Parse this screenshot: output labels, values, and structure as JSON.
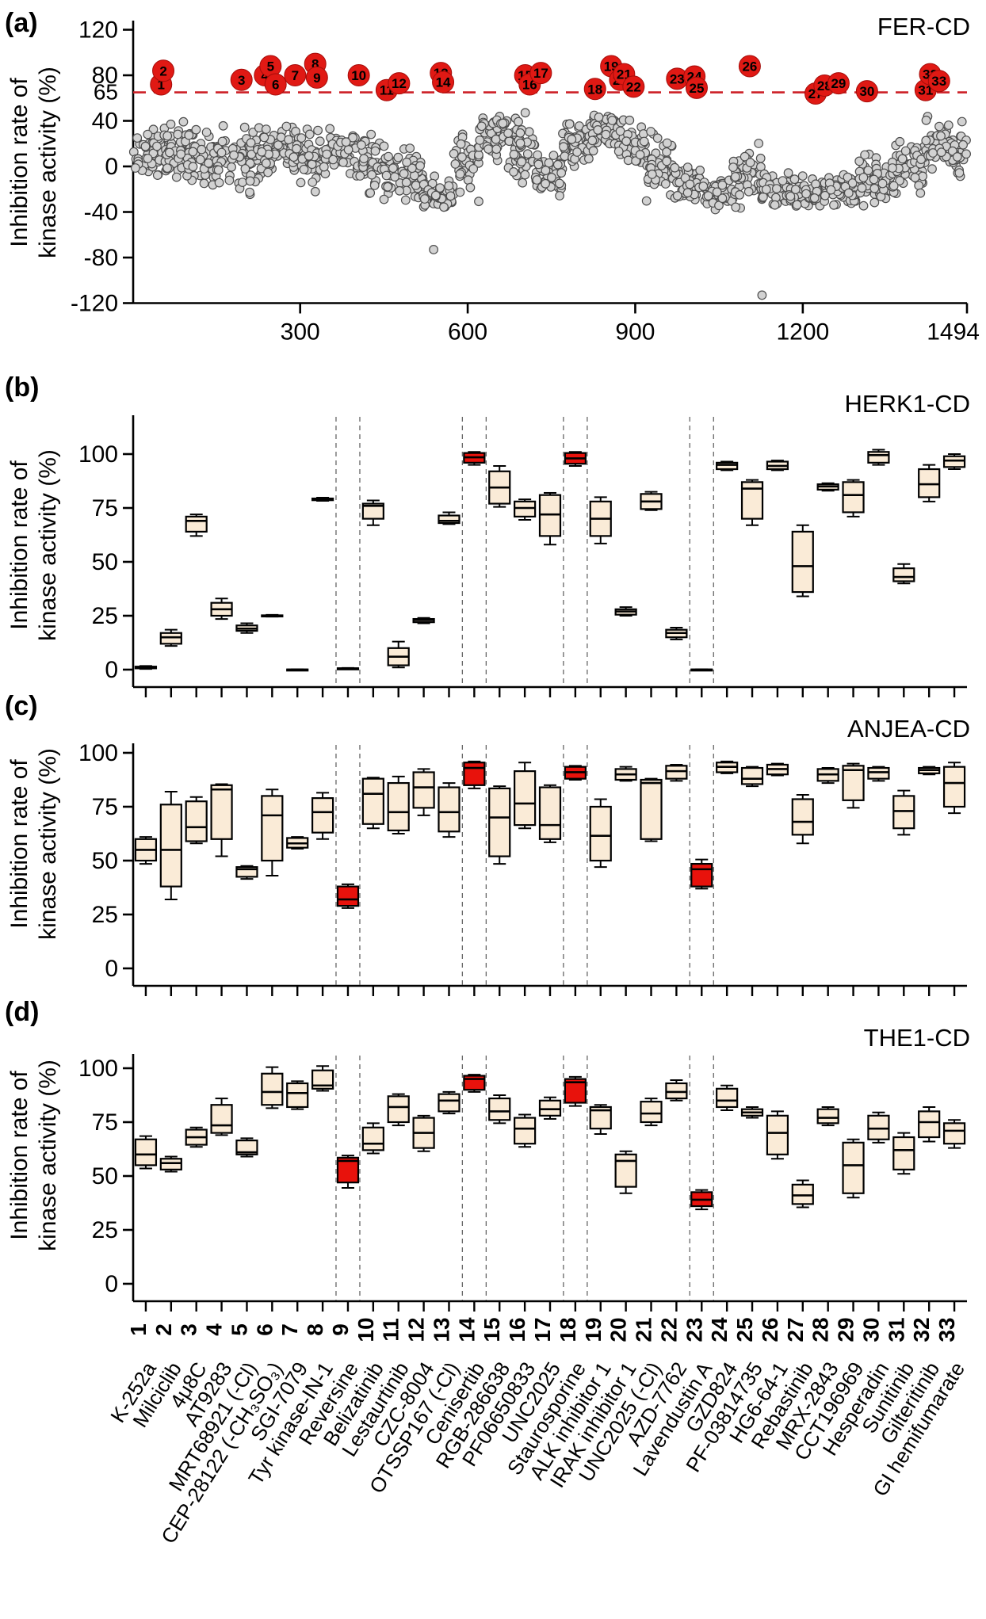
{
  "ui": {
    "panel_a": {
      "letter": "(a)",
      "title": "FER-CD"
    },
    "panel_b": {
      "letter": "(b)",
      "title": "HERK1-CD"
    },
    "panel_c": {
      "letter": "(c)",
      "title": "ANJEA-CD"
    },
    "panel_d": {
      "letter": "(d)",
      "title": "THE1-CD"
    },
    "ylabel_line1": "Inhibition rate of",
    "ylabel_line2": "kinase activity (%)"
  },
  "colors": {
    "box_fill": "#faebd7",
    "box_red": "#e8120c",
    "stroke": "#000000",
    "point_fill": "#d2d2d2",
    "point_stroke": "#4d4d4d",
    "threshold_red": "#cd2027",
    "circle_red": "#e01914",
    "circle_number_yellow": "#ffd60a",
    "number_label_orange": "#e14e0e",
    "name_red": "#e8120c",
    "guide_gray": "#666666"
  },
  "compounds": {
    "numbers": [
      1,
      2,
      3,
      4,
      5,
      6,
      7,
      8,
      9,
      10,
      11,
      12,
      13,
      14,
      15,
      16,
      17,
      18,
      19,
      20,
      21,
      22,
      23,
      24,
      25,
      26,
      27,
      28,
      29,
      30,
      31,
      32,
      33
    ],
    "names": [
      "K-252a",
      "Milciclib",
      "4μ8C",
      "AT9283",
      "MRT68921 (-Cl)",
      "CEP-28122 (-CH₃SO₃)",
      "SGI-7079",
      "Tyr kinase-IN-1",
      "Reversine",
      "Belizatinib",
      "Lestaurtinib",
      "CZC-8004",
      "OTSSP167 (-Cl)",
      "Cenisertib",
      "RGB-286638",
      "PF06650833",
      "UNC2025",
      "Staurosporine",
      "ALK inhibitor 1",
      "IRAK inhibitor 1",
      "UNC2025 (-Cl)",
      "AZD-7762",
      "Lavendustin A",
      "GZD824",
      "PF-03814735",
      "HG6-64-1",
      "Rebastinib",
      "MRX-2843",
      "CCT196969",
      "Hesperadin",
      "Sunitinib",
      "Gilteritinib",
      "GI hemifumarate"
    ],
    "red_name_indices": [
      9,
      14,
      18,
      23
    ],
    "dashed_guide_indices": [
      9,
      14,
      18,
      23
    ]
  },
  "chart_data": [
    {
      "type": "scatter",
      "panel": "a",
      "title": "FER-CD",
      "ylabel": "Inhibition rate of kinase activity (%)",
      "xlim": [
        1,
        1494
      ],
      "ylim": [
        -120,
        120
      ],
      "yticks": [
        -120,
        -80,
        -40,
        0,
        40,
        80,
        120
      ],
      "xticks": [
        300,
        600,
        900,
        1200,
        1494
      ],
      "threshold": {
        "value": 65,
        "label": "65",
        "style": "dashed"
      },
      "n_points_total": 1494,
      "seed": 12345,
      "background_bands": [
        [
          2,
          60,
          12,
          16
        ],
        [
          60,
          150,
          8,
          20
        ],
        [
          150,
          230,
          6,
          24
        ],
        [
          230,
          300,
          15,
          17
        ],
        [
          300,
          340,
          10,
          20
        ],
        [
          340,
          400,
          14,
          16
        ],
        [
          400,
          450,
          2,
          18
        ],
        [
          450,
          520,
          -8,
          20
        ],
        [
          520,
          575,
          -25,
          12
        ],
        [
          575,
          620,
          0,
          22
        ],
        [
          620,
          670,
          28,
          16
        ],
        [
          670,
          720,
          15,
          22
        ],
        [
          720,
          770,
          -8,
          18
        ],
        [
          770,
          820,
          20,
          20
        ],
        [
          820,
          870,
          30,
          14
        ],
        [
          870,
          920,
          18,
          20
        ],
        [
          920,
          970,
          0,
          22
        ],
        [
          970,
          1020,
          -15,
          16
        ],
        [
          1020,
          1075,
          -25,
          10
        ],
        [
          1075,
          1125,
          -8,
          20
        ],
        [
          1125,
          1175,
          -20,
          12
        ],
        [
          1175,
          1235,
          -25,
          10
        ],
        [
          1235,
          1300,
          -20,
          12
        ],
        [
          1300,
          1360,
          -12,
          16
        ],
        [
          1360,
          1420,
          -2,
          20
        ],
        [
          1420,
          1494,
          15,
          20
        ]
      ],
      "outliers": [
        [
          539,
          -73
        ],
        [
          1127,
          -113
        ]
      ],
      "highlighted_hits": [
        {
          "n": 1,
          "x": 51,
          "y": 72
        },
        {
          "n": 2,
          "x": 55,
          "y": 84
        },
        {
          "n": 3,
          "x": 195,
          "y": 76
        },
        {
          "n": 4,
          "x": 237,
          "y": 80
        },
        {
          "n": 5,
          "x": 247,
          "y": 88
        },
        {
          "n": 6,
          "x": 256,
          "y": 72
        },
        {
          "n": 7,
          "x": 291,
          "y": 80
        },
        {
          "n": 8,
          "x": 327,
          "y": 90
        },
        {
          "n": 9,
          "x": 330,
          "y": 78
        },
        {
          "n": 10,
          "x": 405,
          "y": 80
        },
        {
          "n": 11,
          "x": 455,
          "y": 67
        },
        {
          "n": 12,
          "x": 477,
          "y": 73
        },
        {
          "n": 13,
          "x": 552,
          "y": 82
        },
        {
          "n": 14,
          "x": 556,
          "y": 74
        },
        {
          "n": 15,
          "x": 703,
          "y": 80
        },
        {
          "n": 16,
          "x": 711,
          "y": 72
        },
        {
          "n": 17,
          "x": 731,
          "y": 82
        },
        {
          "n": 18,
          "x": 828,
          "y": 68
        },
        {
          "n": 19,
          "x": 857,
          "y": 88
        },
        {
          "n": 20,
          "x": 873,
          "y": 76
        },
        {
          "n": 21,
          "x": 880,
          "y": 81
        },
        {
          "n": 22,
          "x": 897,
          "y": 70
        },
        {
          "n": 23,
          "x": 975,
          "y": 77
        },
        {
          "n": 24,
          "x": 1006,
          "y": 79
        },
        {
          "n": 25,
          "x": 1010,
          "y": 69
        },
        {
          "n": 26,
          "x": 1105,
          "y": 88
        },
        {
          "n": 27,
          "x": 1223,
          "y": 64
        },
        {
          "n": 28,
          "x": 1239,
          "y": 71
        },
        {
          "n": 29,
          "x": 1264,
          "y": 73
        },
        {
          "n": 30,
          "x": 1315,
          "y": 66
        },
        {
          "n": 31,
          "x": 1420,
          "y": 67
        },
        {
          "n": 32,
          "x": 1428,
          "y": 81
        },
        {
          "n": 33,
          "x": 1444,
          "y": 75
        }
      ]
    },
    {
      "type": "box",
      "panel": "b",
      "title": "HERK1-CD",
      "ylabel": "Inhibition rate of kinase activity (%)",
      "ylim": [
        0,
        100
      ],
      "yticks": [
        0,
        25,
        50,
        75,
        100
      ],
      "red_boxes": [
        14,
        18
      ],
      "boxes": [
        [
          0.3,
          0.6,
          1,
          1.4,
          1.7
        ],
        [
          11,
          12,
          15,
          17,
          18.5
        ],
        [
          62,
          64,
          69,
          71,
          72
        ],
        [
          23.5,
          25,
          28,
          31,
          33
        ],
        [
          17,
          18,
          19,
          20.5,
          21.5
        ],
        [
          24.6,
          24.8,
          25,
          25.2,
          25.4
        ],
        [
          -0.2,
          -0.1,
          0,
          0.1,
          0.2
        ],
        [
          78.3,
          78.6,
          79,
          79.4,
          79.8
        ],
        [
          0.2,
          0.35,
          0.5,
          0.65,
          0.8
        ],
        [
          67,
          70,
          76,
          77,
          78.5
        ],
        [
          1,
          2,
          6,
          10,
          13
        ],
        [
          21.5,
          22,
          23,
          23.5,
          24
        ],
        [
          67.5,
          68,
          69,
          71.5,
          73
        ],
        [
          95,
          96,
          98.5,
          100.5,
          101
        ],
        [
          75.5,
          77,
          84.5,
          92,
          94.5
        ],
        [
          69.5,
          71,
          75,
          78,
          79
        ],
        [
          58,
          62,
          72,
          81,
          82
        ],
        [
          94.5,
          95.5,
          98,
          100.5,
          101
        ],
        [
          58.5,
          62,
          70,
          78,
          80
        ],
        [
          25,
          25.5,
          27,
          28,
          29
        ],
        [
          74,
          74.5,
          78,
          81.5,
          82.5
        ],
        [
          14,
          15,
          17,
          18.5,
          19.5
        ],
        [
          -0.2,
          -0.1,
          0,
          0.1,
          0.2
        ],
        [
          92.5,
          93,
          95,
          96,
          96.5
        ],
        [
          67,
          70,
          84,
          87,
          88
        ],
        [
          92.5,
          93,
          94.5,
          96.5,
          97
        ],
        [
          34,
          36,
          48,
          64,
          67
        ],
        [
          83,
          83.5,
          85,
          86,
          86.5
        ],
        [
          71,
          73,
          81,
          87,
          88
        ],
        [
          95,
          96,
          99.5,
          101,
          102
        ],
        [
          40,
          41,
          43,
          47,
          49
        ],
        [
          78,
          80,
          86,
          93,
          95
        ],
        [
          93,
          94,
          97,
          99,
          100
        ]
      ]
    },
    {
      "type": "box",
      "panel": "c",
      "title": "ANJEA-CD",
      "ylabel": "Inhibition rate of kinase activity (%)",
      "ylim": [
        0,
        100
      ],
      "yticks": [
        0,
        25,
        50,
        75,
        100
      ],
      "red_boxes": [
        9,
        14,
        18,
        23
      ],
      "boxes": [
        [
          48.5,
          50,
          55,
          60,
          61
        ],
        [
          32,
          38,
          55,
          76,
          82
        ],
        [
          58,
          59,
          65.5,
          77.5,
          79.5
        ],
        [
          52,
          60,
          83,
          85,
          85.5
        ],
        [
          41.5,
          42.5,
          46,
          47,
          47.5
        ],
        [
          43,
          50,
          71,
          80,
          83
        ],
        [
          55.5,
          56,
          58,
          60.5,
          61
        ],
        [
          60,
          63,
          72.5,
          79,
          81.5
        ],
        [
          28,
          29,
          32,
          38,
          39
        ],
        [
          65,
          67,
          81,
          88,
          88.5
        ],
        [
          62.5,
          64,
          72.5,
          86,
          89
        ],
        [
          71,
          74.5,
          84,
          91,
          92.5
        ],
        [
          61,
          63.5,
          72.5,
          84,
          86
        ],
        [
          83.5,
          85,
          93,
          95.5,
          96
        ],
        [
          48.5,
          52,
          70,
          83.5,
          84.5
        ],
        [
          65,
          66.5,
          76.5,
          91.5,
          95.5
        ],
        [
          58.5,
          60,
          66.5,
          84,
          85
        ],
        [
          87.5,
          88,
          91,
          93.5,
          94
        ],
        [
          47,
          50,
          61.5,
          75,
          78.5
        ],
        [
          87,
          87.5,
          90,
          92.5,
          93.5
        ],
        [
          59,
          60,
          86,
          87.5,
          88
        ],
        [
          87,
          88,
          91.5,
          94,
          94.5
        ],
        [
          37,
          38,
          46,
          48.5,
          50.5
        ],
        [
          90.5,
          91,
          93.5,
          95.5,
          96
        ],
        [
          84.5,
          85.5,
          88,
          93,
          93.5
        ],
        [
          89.5,
          90,
          92.5,
          94.5,
          95
        ],
        [
          58,
          62,
          68,
          78.5,
          80.5
        ],
        [
          86,
          87,
          90,
          92.5,
          93
        ],
        [
          74.5,
          78,
          92,
          94,
          95
        ],
        [
          87,
          88,
          91,
          93,
          93.5
        ],
        [
          62,
          65,
          73,
          80,
          82.5
        ],
        [
          90,
          90.5,
          92,
          93,
          93.5
        ],
        [
          72,
          75,
          86,
          93.5,
          95.5
        ]
      ]
    },
    {
      "type": "box",
      "panel": "d",
      "title": "THE1-CD",
      "ylabel": "Inhibition rate of kinase activity (%)",
      "ylim": [
        0,
        100
      ],
      "yticks": [
        0,
        25,
        50,
        75,
        100
      ],
      "red_boxes": [
        9,
        14,
        18,
        23
      ],
      "boxes": [
        [
          53.5,
          55,
          60,
          67,
          68.5
        ],
        [
          52,
          53,
          56,
          58,
          59
        ],
        [
          63.5,
          64.5,
          68,
          71.5,
          72.5
        ],
        [
          69,
          70,
          73.5,
          83,
          86
        ],
        [
          59,
          60,
          61,
          66.5,
          67.5
        ],
        [
          81.5,
          83,
          89,
          97.5,
          100.5
        ],
        [
          81,
          82,
          88.5,
          93,
          94
        ],
        [
          89.5,
          90.5,
          92,
          99,
          101
        ],
        [
          44.5,
          47,
          57,
          58.5,
          59.5
        ],
        [
          60.5,
          62,
          65,
          72.5,
          74.5
        ],
        [
          73.5,
          75,
          82,
          87,
          88
        ],
        [
          61.5,
          63,
          70,
          77,
          78
        ],
        [
          79,
          80,
          85,
          88,
          89
        ],
        [
          89,
          90,
          95,
          96.5,
          97
        ],
        [
          74.5,
          76,
          80,
          86,
          87.5
        ],
        [
          63.5,
          65,
          72,
          77,
          78.5
        ],
        [
          76.5,
          78,
          81,
          85,
          86.5
        ],
        [
          82.5,
          84,
          93.5,
          95,
          96
        ],
        [
          69.5,
          72,
          80.5,
          82,
          83
        ],
        [
          42,
          45,
          57,
          60,
          61.5
        ],
        [
          73.5,
          75,
          79,
          84.5,
          86
        ],
        [
          85,
          86,
          89,
          93,
          94.5
        ],
        [
          34.5,
          36,
          39,
          42.5,
          43.5
        ],
        [
          80.5,
          82,
          85,
          90.5,
          92
        ],
        [
          77,
          78,
          79.5,
          81,
          82
        ],
        [
          58,
          60,
          70,
          78,
          80
        ],
        [
          35.5,
          37,
          41,
          46,
          48
        ],
        [
          73.5,
          74.5,
          77,
          81,
          82
        ],
        [
          40,
          42,
          55,
          65.5,
          67
        ],
        [
          65.5,
          67,
          72,
          78,
          79.5
        ],
        [
          51,
          53,
          62,
          68,
          70
        ],
        [
          66,
          68,
          75,
          80,
          82
        ],
        [
          63,
          65,
          71,
          74.5,
          76
        ]
      ]
    }
  ]
}
